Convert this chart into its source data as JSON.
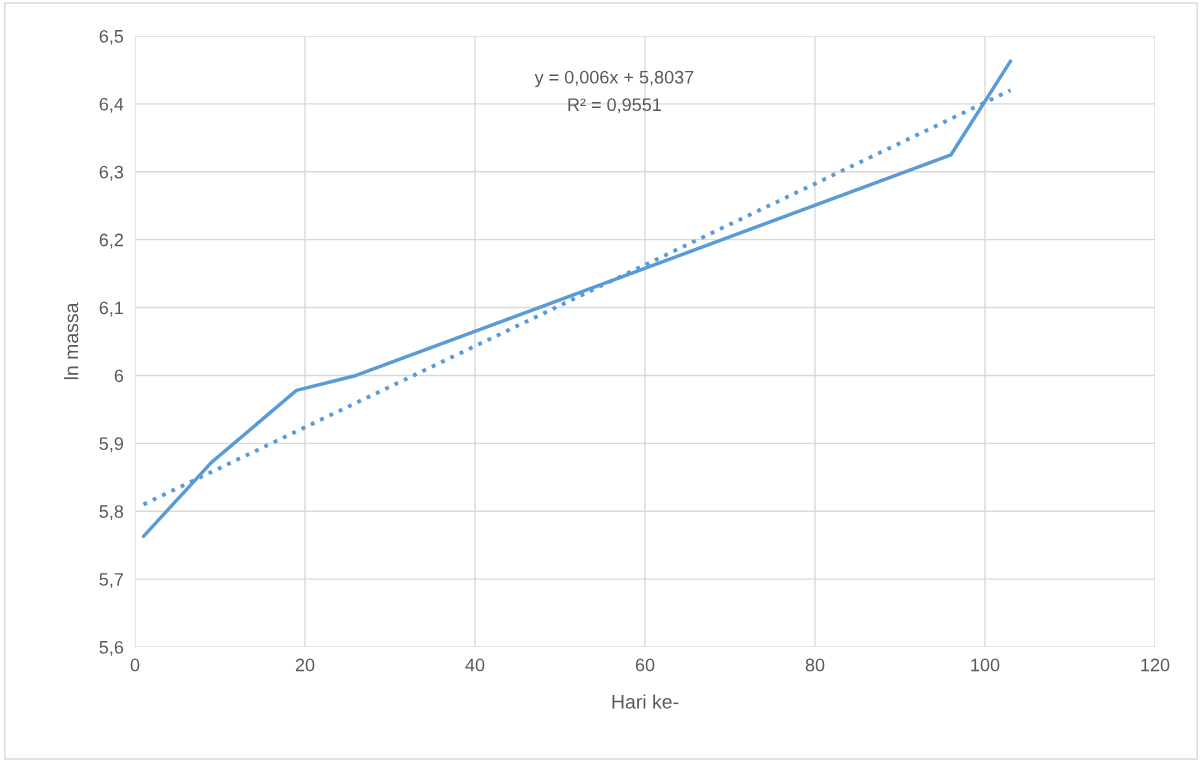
{
  "chart_data": {
    "type": "line",
    "xlabel": "Hari ke-",
    "ylabel": "ln massa",
    "xlim": [
      0,
      120
    ],
    "xticks": [
      0,
      20,
      40,
      60,
      80,
      100,
      120
    ],
    "ylim": [
      5.6,
      6.5
    ],
    "yticks": [
      {
        "value": 5.6,
        "label": "5,6"
      },
      {
        "value": 5.7,
        "label": "5,7"
      },
      {
        "value": 5.8,
        "label": "5,8"
      },
      {
        "value": 5.9,
        "label": "5,9"
      },
      {
        "value": 6,
        "label": "6"
      },
      {
        "value": 6.1,
        "label": "6,1"
      },
      {
        "value": 6.2,
        "label": "6,2"
      },
      {
        "value": 6.3,
        "label": "6,3"
      },
      {
        "value": 6.4,
        "label": "6,4"
      },
      {
        "value": 6.5,
        "label": "6,5"
      }
    ],
    "grid": true,
    "series": [
      {
        "color": "#5b9bd5",
        "line_style": "solid",
        "x": [
          1,
          9,
          19,
          26,
          96,
          103
        ],
        "values": [
          5.763,
          5.872,
          5.978,
          6.0,
          6.325,
          6.463
        ]
      },
      {
        "color": "#5b9bd5",
        "line_style": "dotted",
        "x": [
          1,
          103
        ],
        "values": [
          5.81,
          6.42
        ]
      }
    ],
    "annotations": [
      "y = 0,006x + 5,8037",
      "R² = 0,9551"
    ]
  }
}
